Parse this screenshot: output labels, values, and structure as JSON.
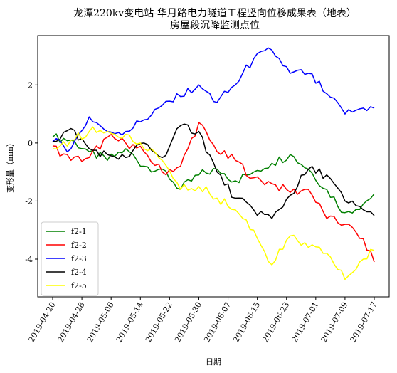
{
  "chart_data": {
    "type": "line",
    "title_line1": "龙潭220kv变电站-华月路电力隧道工程竖向位移成果表（地表）",
    "title_line2": "房屋段沉降监测点位",
    "xlabel": "日期",
    "ylabel": "变形量（mm）",
    "x_start": "2019-04-20",
    "x_end": "2019-07-17",
    "x_ticks": [
      "2019-04-20",
      "2019-04-28",
      "2019-05-06",
      "2019-05-14",
      "2019-05-22",
      "2019-05-30",
      "2019-06-07",
      "2019-06-15",
      "2019-06-23",
      "2019-07-01",
      "2019-07-09",
      "2019-07-17"
    ],
    "ylim": [
      -5.3,
      3.7
    ],
    "y_ticks": [
      -4,
      -2,
      0,
      2
    ],
    "grid": false,
    "legend_position": "lower-left",
    "series": [
      {
        "name": "f2-1",
        "color": "#008000",
        "dates": [
          "2019-04-20",
          "2019-04-25",
          "2019-04-30",
          "2019-05-05",
          "2019-05-10",
          "2019-05-15",
          "2019-05-20",
          "2019-05-25",
          "2019-05-30",
          "2019-06-04",
          "2019-06-09",
          "2019-06-14",
          "2019-06-19",
          "2019-06-24",
          "2019-06-29",
          "2019-07-04",
          "2019-07-09",
          "2019-07-14",
          "2019-07-17"
        ],
        "values": [
          0.2,
          0.1,
          -0.3,
          -0.6,
          -0.2,
          -0.8,
          -0.9,
          -1.6,
          -1.1,
          -0.9,
          -1.3,
          -1.0,
          -0.7,
          -0.4,
          -0.9,
          -1.6,
          -2.4,
          -2.1,
          -1.75
        ]
      },
      {
        "name": "f2-2",
        "color": "#ff0000",
        "dates": [
          "2019-04-20",
          "2019-04-25",
          "2019-04-30",
          "2019-05-05",
          "2019-05-10",
          "2019-05-15",
          "2019-05-20",
          "2019-05-25",
          "2019-05-30",
          "2019-06-04",
          "2019-06-09",
          "2019-06-14",
          "2019-06-19",
          "2019-06-24",
          "2019-06-29",
          "2019-07-04",
          "2019-07-09",
          "2019-07-14",
          "2019-07-17"
        ],
        "values": [
          -0.1,
          -0.6,
          -0.5,
          0.2,
          0.0,
          -0.3,
          -1.0,
          -0.8,
          0.7,
          -0.3,
          -0.6,
          -1.2,
          -1.4,
          -1.7,
          -1.6,
          -2.6,
          -2.8,
          -3.3,
          -4.1
        ]
      },
      {
        "name": "f2-3",
        "color": "#0000ff",
        "dates": [
          "2019-04-20",
          "2019-04-25",
          "2019-04-30",
          "2019-05-05",
          "2019-05-10",
          "2019-05-15",
          "2019-05-20",
          "2019-05-25",
          "2019-05-30",
          "2019-06-04",
          "2019-06-09",
          "2019-06-14",
          "2019-06-19",
          "2019-06-24",
          "2019-06-29",
          "2019-07-04",
          "2019-07-09",
          "2019-07-14",
          "2019-07-17"
        ],
        "values": [
          0.05,
          -0.2,
          0.9,
          0.4,
          0.4,
          0.8,
          1.3,
          1.6,
          2.0,
          1.4,
          2.0,
          2.9,
          3.2,
          2.4,
          2.4,
          1.7,
          1.0,
          1.2,
          1.2
        ]
      },
      {
        "name": "f2-4",
        "color": "#000000",
        "dates": [
          "2019-04-20",
          "2019-04-25",
          "2019-04-30",
          "2019-05-05",
          "2019-05-10",
          "2019-05-15",
          "2019-05-20",
          "2019-05-25",
          "2019-05-30",
          "2019-06-04",
          "2019-06-09",
          "2019-06-14",
          "2019-06-19",
          "2019-06-24",
          "2019-06-29",
          "2019-07-04",
          "2019-07-09",
          "2019-07-14",
          "2019-07-17"
        ],
        "values": [
          0.05,
          0.5,
          -0.2,
          -0.4,
          -0.5,
          0.0,
          -0.5,
          0.6,
          0.4,
          -1.0,
          -1.9,
          -2.3,
          -2.6,
          -1.8,
          -0.9,
          -1.1,
          -2.0,
          -2.3,
          -2.5
        ]
      },
      {
        "name": "f2-5",
        "color": "#ffff00",
        "dates": [
          "2019-04-20",
          "2019-04-25",
          "2019-04-30",
          "2019-05-05",
          "2019-05-10",
          "2019-05-15",
          "2019-05-20",
          "2019-05-25",
          "2019-05-30",
          "2019-06-04",
          "2019-06-09",
          "2019-06-14",
          "2019-06-19",
          "2019-06-24",
          "2019-06-29",
          "2019-07-04",
          "2019-07-09",
          "2019-07-14",
          "2019-07-17"
        ],
        "values": [
          -0.2,
          0.1,
          0.4,
          0.4,
          0.3,
          -0.2,
          -0.6,
          -1.6,
          -1.5,
          -1.9,
          -2.3,
          -3.0,
          -4.2,
          -3.2,
          -3.6,
          -3.8,
          -4.7,
          -4.0,
          -3.7
        ]
      }
    ]
  }
}
